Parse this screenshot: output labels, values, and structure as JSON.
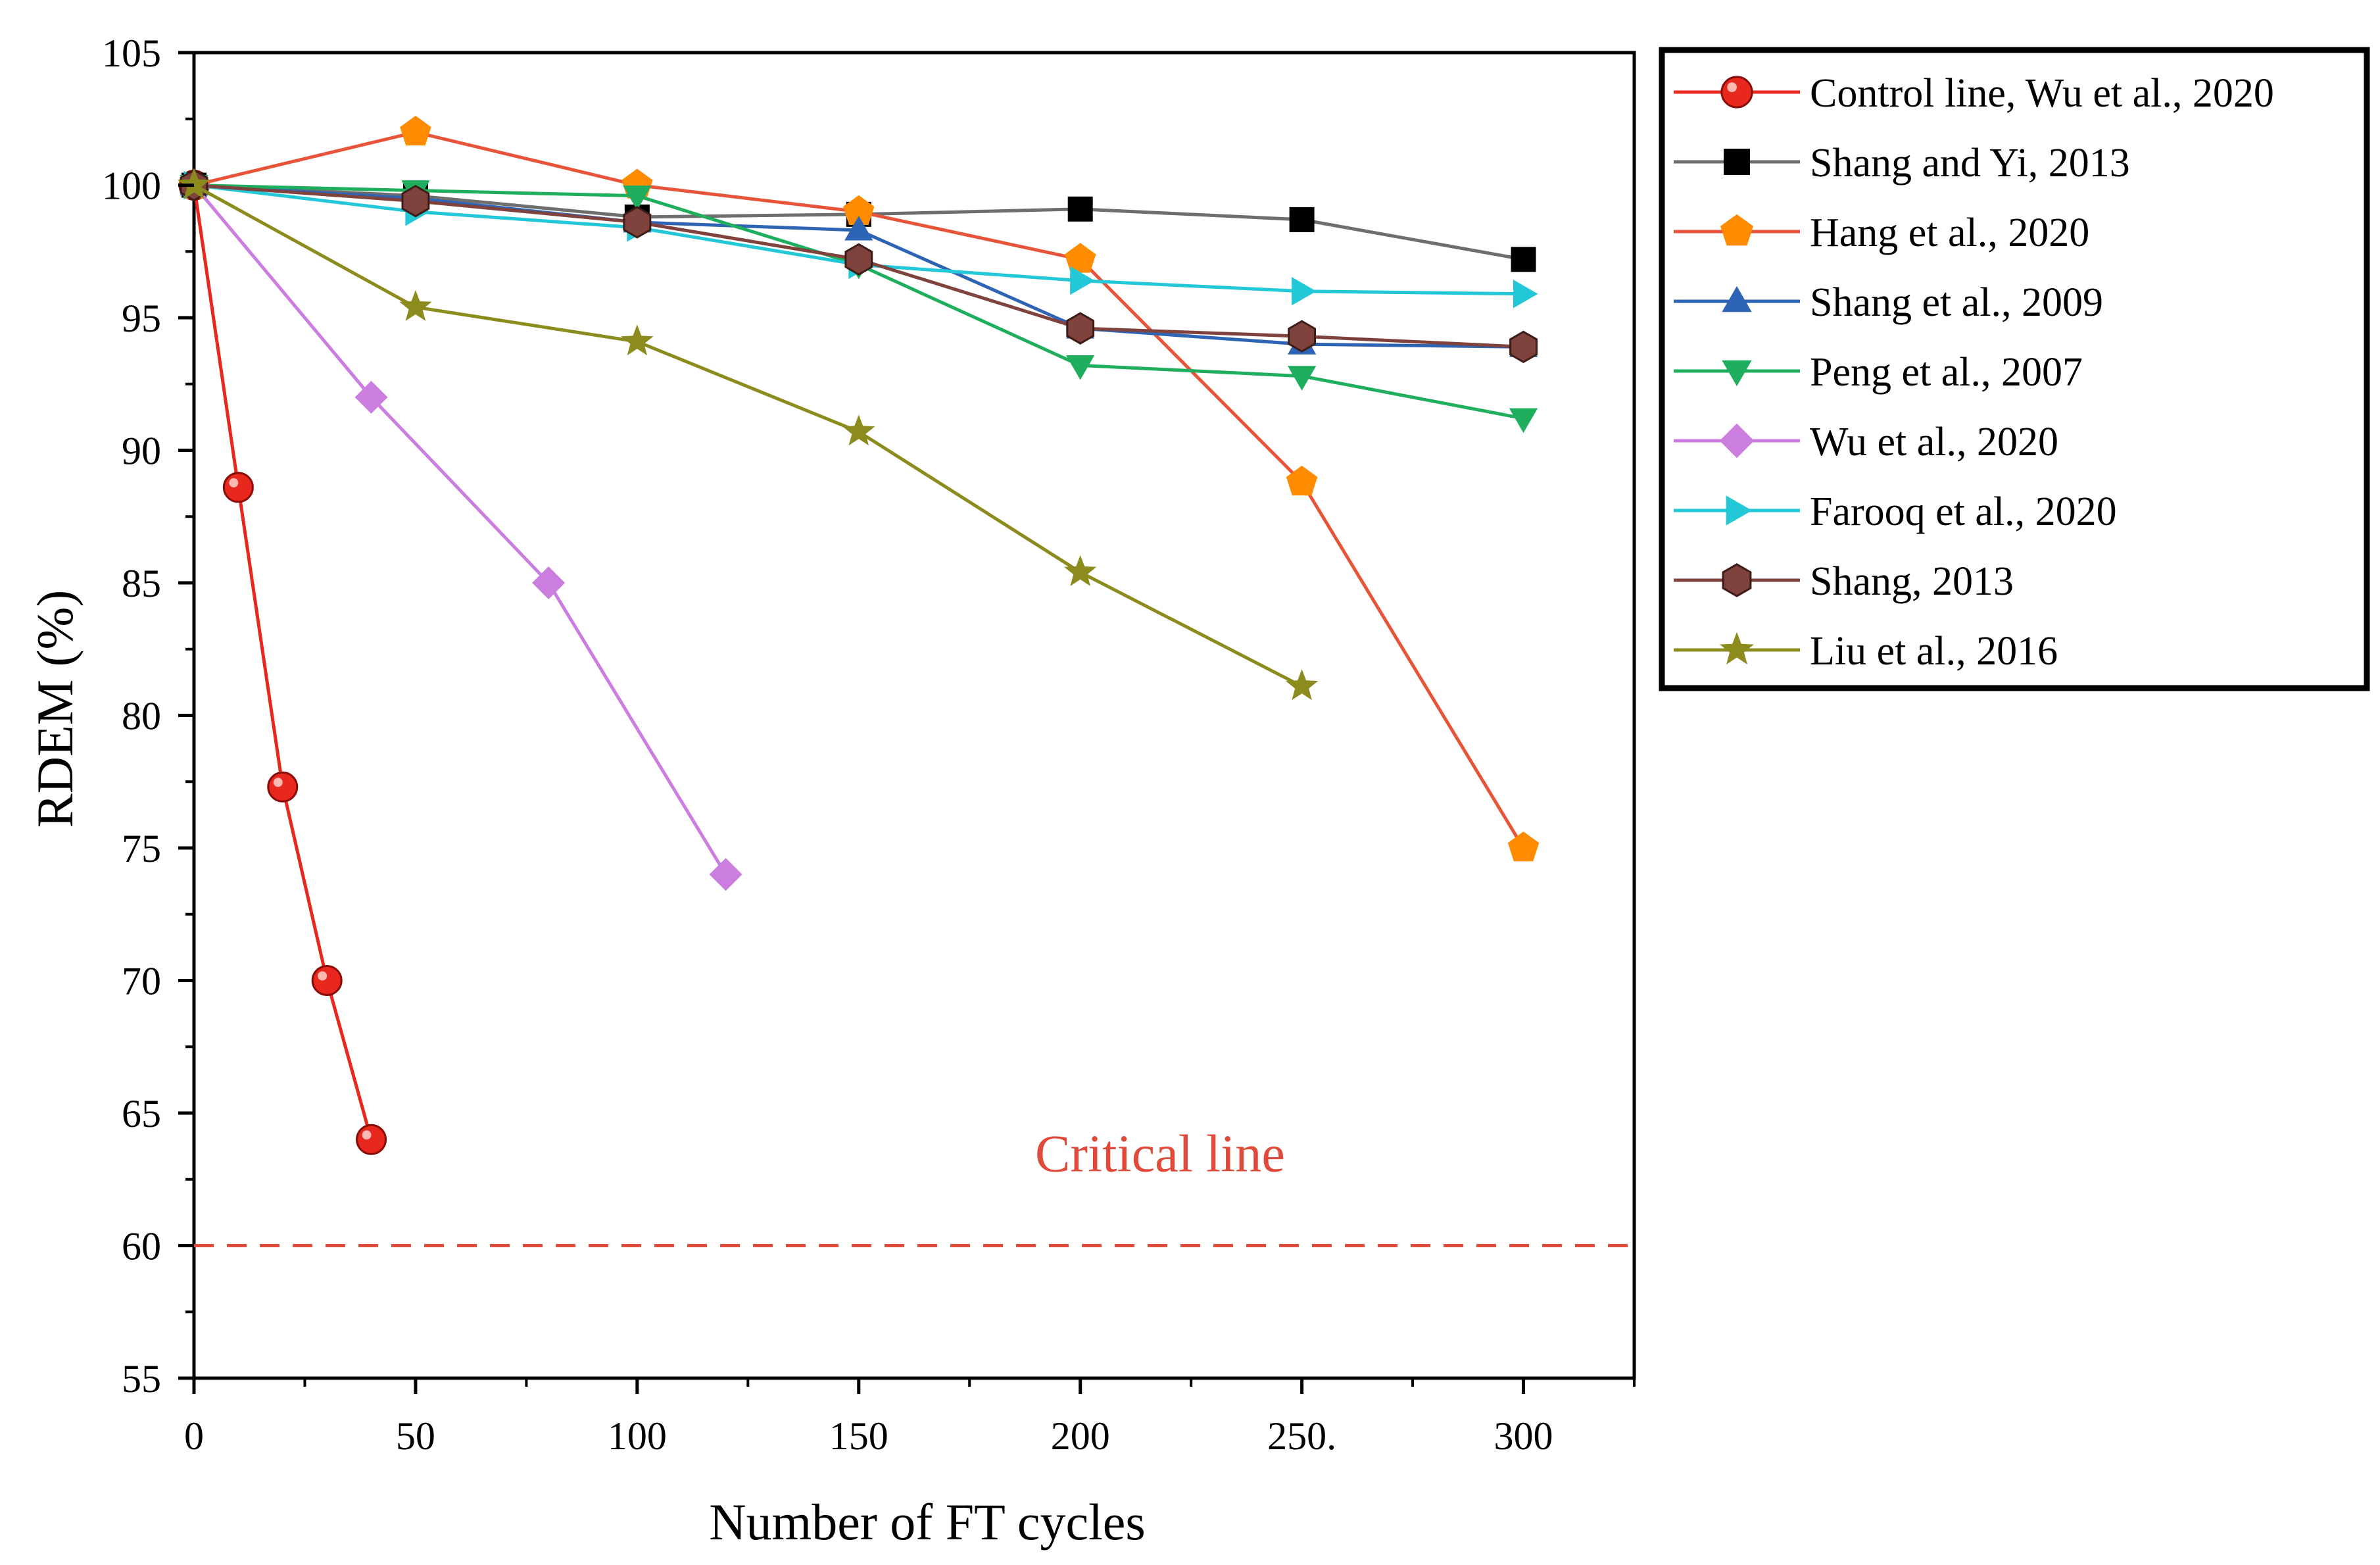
{
  "chart_data": {
    "type": "line",
    "title": "",
    "xlabel": "Number of FT cycles",
    "ylabel": "RDEM (%)",
    "xlim": [
      0,
      325
    ],
    "ylim": [
      55,
      105
    ],
    "x_ticks": [
      0,
      50,
      100,
      150,
      200,
      250,
      300
    ],
    "x_tick_labels": [
      "0",
      "50",
      "100",
      "150",
      "200",
      "250.",
      "300"
    ],
    "y_ticks": [
      55,
      60,
      65,
      70,
      75,
      80,
      85,
      90,
      95,
      100,
      105
    ],
    "y_tick_labels": [
      "55",
      "60",
      "65",
      "70",
      "75",
      "80",
      "85",
      "90",
      "95",
      "100",
      "105"
    ],
    "grid": false,
    "legend_position": "outside-top-right",
    "reference_line": {
      "y": 60,
      "label": "Critical line",
      "color": "#e04a3a",
      "style": "dashed"
    },
    "series": [
      {
        "name": "Control line, Wu et al., 2020",
        "color": "#e8281e",
        "marker": "sphere",
        "x": [
          0,
          10,
          20,
          30,
          40
        ],
        "values": [
          100,
          88.6,
          77.3,
          70,
          64
        ]
      },
      {
        "name": "Shang and Yi, 2013",
        "color": "#6e6e6e",
        "marker_color": "#000000",
        "marker": "square",
        "x": [
          0,
          50,
          100,
          150,
          200,
          250,
          300
        ],
        "values": [
          100,
          99.6,
          98.8,
          98.9,
          99.1,
          98.7,
          97.2
        ]
      },
      {
        "name": "Hang et al., 2020",
        "color": "#e8543a",
        "marker_color": "#ff8c00",
        "marker": "pentagon",
        "x": [
          0,
          50,
          100,
          150,
          200,
          250,
          300
        ],
        "values": [
          100,
          102,
          100,
          99,
          97.2,
          88.8,
          75
        ]
      },
      {
        "name": "Shang et al., 2009",
        "color": "#2e64b4",
        "marker": "triangle-up",
        "x": [
          0,
          50,
          100,
          150,
          200,
          250,
          300
        ],
        "values": [
          100,
          99.5,
          98.6,
          98.3,
          94.6,
          94,
          93.9
        ]
      },
      {
        "name": "Peng et al., 2007",
        "color": "#1fae5e",
        "marker": "triangle-down",
        "x": [
          0,
          50,
          100,
          150,
          200,
          250,
          300
        ],
        "values": [
          100,
          99.8,
          99.6,
          97,
          93.2,
          92.8,
          91.2
        ]
      },
      {
        "name": "Wu et al., 2020",
        "color": "#cc7ee0",
        "marker": "diamond",
        "x": [
          0,
          40,
          80,
          120
        ],
        "values": [
          100,
          92,
          85,
          74
        ]
      },
      {
        "name": "Farooq et al., 2020",
        "color": "#22c8d8",
        "marker": "triangle-right",
        "x": [
          0,
          50,
          100,
          150,
          200,
          250,
          300
        ],
        "values": [
          100,
          99,
          98.4,
          97,
          96.4,
          96,
          95.9
        ]
      },
      {
        "name": "Shang, 2013",
        "color": "#80423c",
        "marker": "hexagon",
        "x": [
          0,
          50,
          100,
          150,
          200,
          250,
          300
        ],
        "values": [
          100,
          99.4,
          98.6,
          97.2,
          94.6,
          94.3,
          93.9
        ]
      },
      {
        "name": "Liu et al., 2016",
        "color": "#8c8c1e",
        "marker": "star",
        "x": [
          0,
          50,
          100,
          150,
          200,
          250
        ],
        "values": [
          100,
          95.4,
          94.1,
          90.7,
          85.4,
          81.1
        ]
      }
    ]
  }
}
